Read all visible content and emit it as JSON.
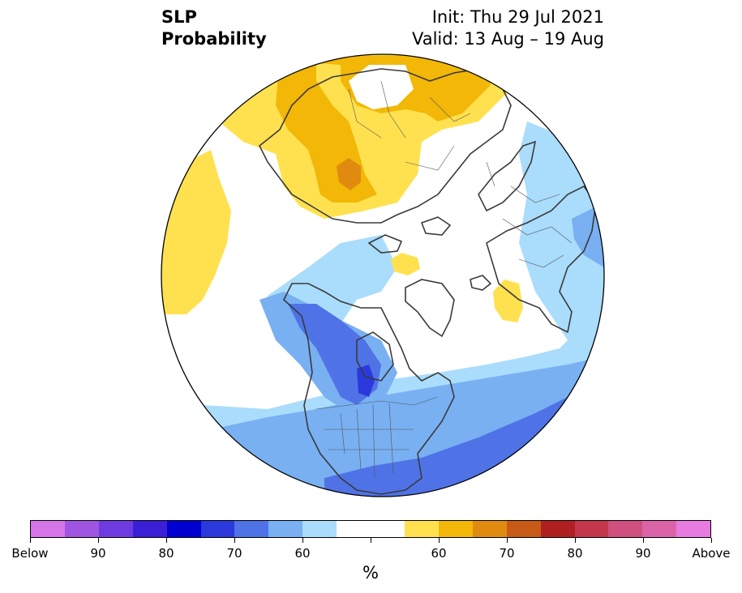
{
  "header": {
    "variable": "SLP",
    "field": "Probability",
    "init": "Init: Thu 29 Jul 2021",
    "valid": "Valid: 13 Aug – 19 Aug"
  },
  "map": {
    "projection": "north-polar-stereographic",
    "circle_color": "#000000",
    "coastline_color": "#3a3a3a"
  },
  "colorbar": {
    "colors": [
      "#d575e8",
      "#a055e0",
      "#6e3be0",
      "#3a1fd6",
      "#0000d0",
      "#2a38dc",
      "#4f73e6",
      "#78b0f2",
      "#aadcfc",
      "#ffffff",
      "#ffffff",
      "#ffe14f",
      "#f2b707",
      "#e08a10",
      "#c85a17",
      "#b02020",
      "#c2384a",
      "#cf4f7e",
      "#db64a9",
      "#e87be0"
    ],
    "labels": [
      "Below",
      "90",
      "80",
      "70",
      "60",
      "",
      "60",
      "70",
      "80",
      "90",
      "Above"
    ],
    "unit": "%"
  }
}
